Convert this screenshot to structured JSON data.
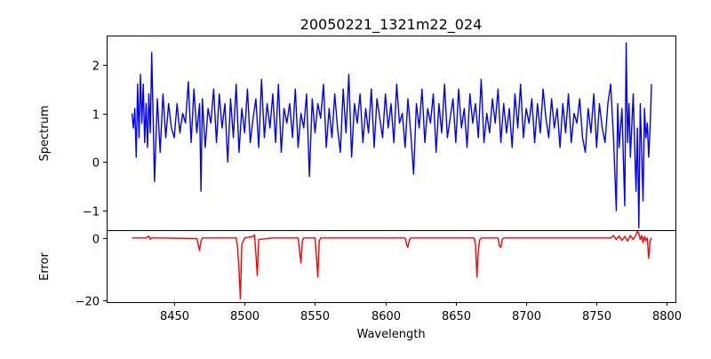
{
  "chart_data": [
    {
      "panel": "spectrum",
      "type": "line",
      "title": "20050221_1321m22_024",
      "xlabel": "",
      "ylabel": "Spectrum",
      "xlim": [
        8402,
        8806
      ],
      "ylim": [
        -1.4,
        2.6
      ],
      "yticks": [
        -1,
        0,
        1,
        2
      ],
      "ytick_labels": [
        "−1",
        "0",
        "1",
        "2"
      ],
      "grid": false,
      "series": [
        {
          "color": "#0000ff",
          "x": [
            8420,
            8421,
            8422,
            8423,
            8424,
            8425,
            8426,
            8427,
            8428,
            8429,
            8430,
            8431,
            8432,
            8433,
            8434,
            8436,
            8438,
            8440,
            8442,
            8444,
            8446,
            8448,
            8450,
            8452,
            8454,
            8456,
            8458,
            8460,
            8462,
            8464,
            8466,
            8468,
            8469,
            8470,
            8472,
            8474,
            8476,
            8478,
            8480,
            8482,
            8484,
            8486,
            8488,
            8490,
            8492,
            8494,
            8496,
            8498,
            8500,
            8502,
            8504,
            8506,
            8508,
            8510,
            8512,
            8514,
            8516,
            8518,
            8520,
            8522,
            8524,
            8526,
            8528,
            8530,
            8532,
            8534,
            8536,
            8538,
            8540,
            8542,
            8544,
            8546,
            8548,
            8550,
            8552,
            8554,
            8556,
            8558,
            8560,
            8562,
            8564,
            8566,
            8568,
            8570,
            8572,
            8574,
            8576,
            8578,
            8580,
            8582,
            8584,
            8586,
            8588,
            8590,
            8592,
            8594,
            8596,
            8598,
            8600,
            8602,
            8604,
            8606,
            8608,
            8610,
            8612,
            8614,
            8616,
            8618,
            8620,
            8622,
            8624,
            8626,
            8628,
            8630,
            8632,
            8634,
            8636,
            8638,
            8640,
            8642,
            8644,
            8646,
            8648,
            8650,
            8652,
            8654,
            8656,
            8658,
            8660,
            8662,
            8664,
            8666,
            8668,
            8670,
            8672,
            8674,
            8676,
            8678,
            8680,
            8682,
            8684,
            8686,
            8688,
            8690,
            8692,
            8694,
            8696,
            8698,
            8700,
            8702,
            8704,
            8706,
            8708,
            8710,
            8712,
            8714,
            8716,
            8718,
            8720,
            8722,
            8724,
            8726,
            8728,
            8730,
            8732,
            8734,
            8736,
            8738,
            8740,
            8742,
            8744,
            8746,
            8748,
            8750,
            8752,
            8754,
            8756,
            8758,
            8760,
            8762,
            8764,
            8765,
            8766,
            8768,
            8770,
            8771,
            8772,
            8773,
            8774,
            8776,
            8778,
            8779,
            8780,
            8781,
            8782,
            8783,
            8784,
            8785,
            8786,
            8787,
            8788,
            8789
          ],
          "y": [
            1.0,
            0.7,
            1.1,
            0.1,
            1.6,
            0.5,
            1.8,
            0.8,
            1.6,
            0.4,
            1.2,
            0.3,
            1.4,
            0.6,
            2.25,
            -0.4,
            1.3,
            0.2,
            1.4,
            0.5,
            1.2,
            0.7,
            0.5,
            1.2,
            0.6,
            1.0,
            0.8,
            1.65,
            0.4,
            1.5,
            0.6,
            1.2,
            -0.6,
            1.3,
            0.3,
            1.1,
            0.8,
            1.5,
            0.4,
            1.4,
            0.7,
            1.2,
            0.0,
            1.3,
            0.5,
            1.6,
            0.2,
            1.1,
            0.6,
            1.5,
            0.4,
            0.9,
            1.3,
            0.3,
            1.7,
            0.5,
            1.2,
            0.7,
            1.4,
            0.4,
            1.6,
            0.2,
            1.1,
            0.8,
            1.2,
            0.5,
            1.5,
            0.3,
            1.0,
            0.7,
            1.4,
            -0.3,
            1.3,
            0.6,
            1.2,
            0.9,
            1.6,
            0.3,
            1.1,
            0.5,
            1.4,
            0.7,
            0.2,
            1.5,
            0.6,
            1.8,
            0.1,
            1.2,
            0.8,
            1.4,
            0.4,
            1.1,
            0.6,
            1.5,
            0.3,
            1.3,
            0.9,
            0.5,
            1.4,
            0.7,
            1.2,
            0.4,
            1.6,
            0.8,
            1.0,
            0.3,
            1.3,
            0.6,
            -0.25,
            1.2,
            0.7,
            1.5,
            0.4,
            1.1,
            0.8,
            1.4,
            0.2,
            1.2,
            0.6,
            1.6,
            0.5,
            0.9,
            1.3,
            0.4,
            1.5,
            0.7,
            1.1,
            0.3,
            1.4,
            0.8,
            1.2,
            0.5,
            1.7,
            0.4,
            1.0,
            0.6,
            1.3,
            0.8,
            1.5,
            0.4,
            1.2,
            0.6,
            1.1,
            0.3,
            1.4,
            0.7,
            1.6,
            0.5,
            1.1,
            0.8,
            1.3,
            0.4,
            1.2,
            0.6,
            1.5,
            0.9,
            0.5,
            1.3,
            0.7,
            1.1,
            0.3,
            1.2,
            0.6,
            1.4,
            0.4,
            1.0,
            0.8,
            1.3,
            0.5,
            0.2,
            1.1,
            0.6,
            1.4,
            0.3,
            1.2,
            0.7,
            0.4,
            1.2,
            1.6,
            0.5,
            -1.0,
            1.2,
            0.3,
            1.1,
            -0.9,
            2.45,
            0.4,
            1.2,
            0.1,
            1.4,
            -0.6,
            0.7,
            -1.35,
            1.2,
            0.2,
            -0.8,
            1.1,
            0.5,
            0.8,
            0.1,
            0.7,
            1.6
          ]
        }
      ]
    },
    {
      "panel": "error",
      "type": "line",
      "title": "",
      "xlabel": "Wavelength",
      "ylabel": "Error",
      "xlim": [
        8402,
        8806
      ],
      "ylim": [
        -20.5,
        2.5
      ],
      "xticks": [
        8450,
        8500,
        8550,
        8600,
        8650,
        8700,
        8750,
        8800
      ],
      "xtick_labels": [
        "8450",
        "8500",
        "8550",
        "8600",
        "8650",
        "8700",
        "8750",
        "8800"
      ],
      "yticks": [
        0,
        -20
      ],
      "ytick_labels": [
        "0",
        "−20"
      ],
      "grid": false,
      "series": [
        {
          "color": "#ff0000",
          "x": [
            8420,
            8430,
            8432,
            8433,
            8434,
            8440,
            8466,
            8467,
            8468,
            8469,
            8470,
            8480,
            8494,
            8495,
            8496,
            8497,
            8498,
            8500,
            8506,
            8507,
            8508,
            8509,
            8510,
            8520,
            8538,
            8539,
            8540,
            8541,
            8542,
            8550,
            8551,
            8552,
            8553,
            8554,
            8570,
            8614,
            8615,
            8616,
            8617,
            8618,
            8630,
            8663,
            8664,
            8665,
            8666,
            8667,
            8668,
            8680,
            8681,
            8682,
            8683,
            8684,
            8690,
            8730,
            8760,
            8762,
            8764,
            8766,
            8768,
            8770,
            8772,
            8774,
            8776,
            8778,
            8779,
            8780,
            8781,
            8782,
            8783,
            8784,
            8785,
            8786,
            8787,
            8788,
            8789
          ],
          "y": [
            0.0,
            0.0,
            0.6,
            -0.4,
            0.0,
            0.0,
            -0.2,
            -2.0,
            -4.0,
            -1.0,
            0.0,
            0.0,
            0.0,
            -3.0,
            -10.0,
            -19.5,
            -2.0,
            0.0,
            0.5,
            1.0,
            -5.0,
            -12.0,
            -0.5,
            0.0,
            0.0,
            -4.0,
            -8.0,
            -1.0,
            0.0,
            0.0,
            -6.0,
            -12.5,
            -1.0,
            0.0,
            0.0,
            0.0,
            -2.0,
            -3.0,
            -0.5,
            0.0,
            0.0,
            0.0,
            -2.0,
            -12.5,
            -4.0,
            -0.5,
            0.0,
            0.0,
            -2.5,
            -3.0,
            -0.5,
            0.0,
            0.0,
            0.0,
            0.0,
            0.8,
            -0.5,
            0.6,
            -0.8,
            0.5,
            -1.0,
            0.8,
            -0.5,
            1.0,
            2.2,
            1.5,
            -0.5,
            0.8,
            -1.5,
            0.5,
            -0.8,
            0.0,
            -6.5,
            -1.0,
            0.0
          ]
        }
      ]
    }
  ]
}
